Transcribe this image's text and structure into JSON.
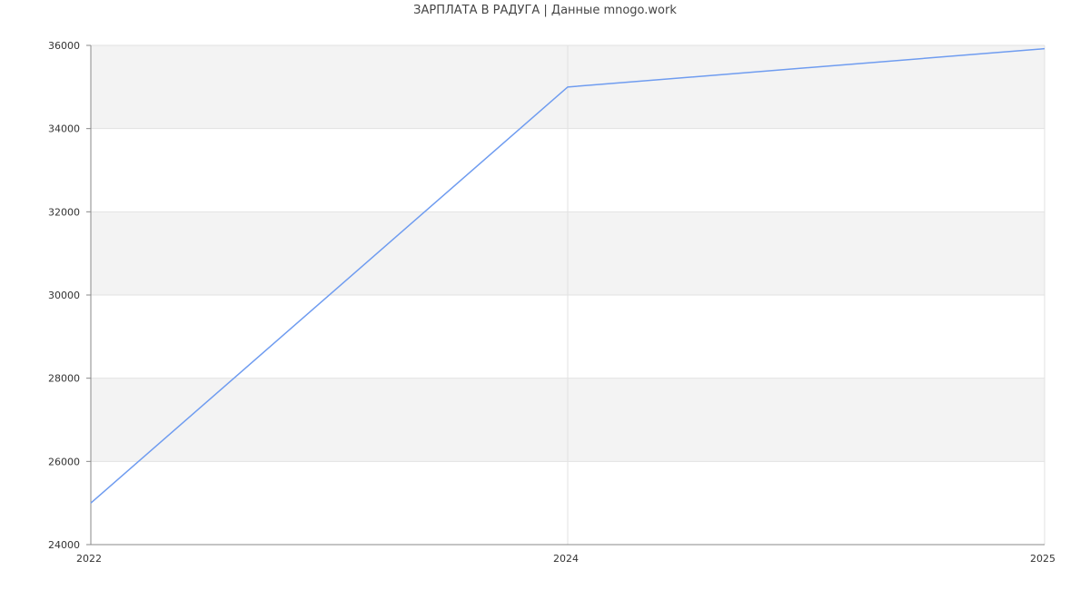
{
  "chart_data": {
    "type": "line",
    "title": "ЗАРПЛАТА В РАДУГА | Данные mnogo.work",
    "categories": [
      "2022",
      "2024",
      "2025"
    ],
    "series": [
      {
        "values": [
          25000,
          35000,
          35920
        ],
        "color": "#6f9cf0"
      }
    ],
    "ylim": [
      24000,
      36000
    ],
    "yticks": [
      24000,
      26000,
      28000,
      30000,
      32000,
      34000,
      36000
    ],
    "grid": true,
    "band_color": "#f3f3f3"
  }
}
